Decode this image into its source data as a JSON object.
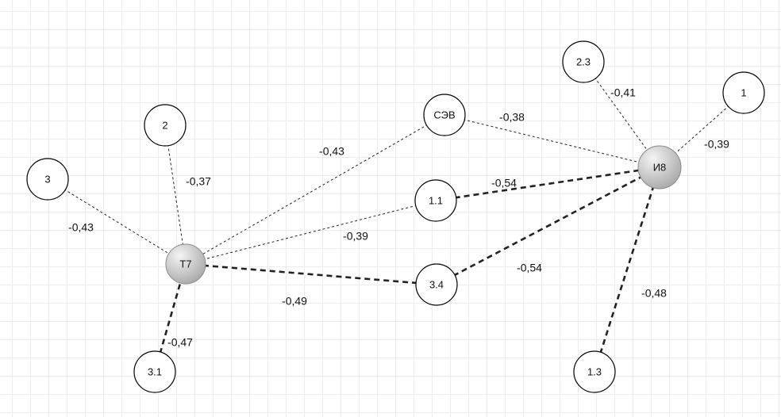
{
  "diagram": {
    "nodes": [
      {
        "id": "T7",
        "label": "T7",
        "hub": true
      },
      {
        "id": "I8",
        "label": "И8",
        "hub": true
      },
      {
        "id": "SEV",
        "label": "СЭВ",
        "hub": false
      },
      {
        "id": "n1",
        "label": "1",
        "hub": false
      },
      {
        "id": "n2",
        "label": "2",
        "hub": false
      },
      {
        "id": "n3",
        "label": "3",
        "hub": false
      },
      {
        "id": "n1_1",
        "label": "1.1",
        "hub": false
      },
      {
        "id": "n1_3",
        "label": "1.3",
        "hub": false
      },
      {
        "id": "n2_3",
        "label": "2.3",
        "hub": false
      },
      {
        "id": "n3_1",
        "label": "3.1",
        "hub": false
      },
      {
        "id": "n3_4",
        "label": "3.4",
        "hub": false
      }
    ],
    "edges": [
      {
        "from": "n3",
        "to": "T7",
        "value": "-0,43",
        "style": "thin"
      },
      {
        "from": "n2",
        "to": "T7",
        "value": "-0,37",
        "style": "thin"
      },
      {
        "from": "SEV",
        "to": "T7",
        "value": "-0,43",
        "style": "thin"
      },
      {
        "from": "n1_1",
        "to": "T7",
        "value": "-0,39",
        "style": "thin"
      },
      {
        "from": "n3_4",
        "to": "T7",
        "value": "-0,49",
        "style": "thick"
      },
      {
        "from": "n3_1",
        "to": "T7",
        "value": "-0,47",
        "style": "thick"
      },
      {
        "from": "SEV",
        "to": "I8",
        "value": "-0,38",
        "style": "thin"
      },
      {
        "from": "n1_1",
        "to": "I8",
        "value": "-0,54",
        "style": "thick"
      },
      {
        "from": "n3_4",
        "to": "I8",
        "value": "-0,54",
        "style": "thick"
      },
      {
        "from": "n2_3",
        "to": "I8",
        "value": "-0,41",
        "style": "thin"
      },
      {
        "from": "n1",
        "to": "I8",
        "value": "-0,39",
        "style": "thin"
      },
      {
        "from": "n1_3",
        "to": "I8",
        "value": "-0,48",
        "style": "thick"
      }
    ]
  },
  "colors": {
    "node_fill": "#ffffff",
    "node_stroke": "#000000",
    "hub_gradient_light": "#f4f4f4",
    "hub_gradient_dark": "#a9a9a9",
    "hub_stroke": "#8a8a8a",
    "edge": "#222222",
    "grid": "#ececec"
  }
}
